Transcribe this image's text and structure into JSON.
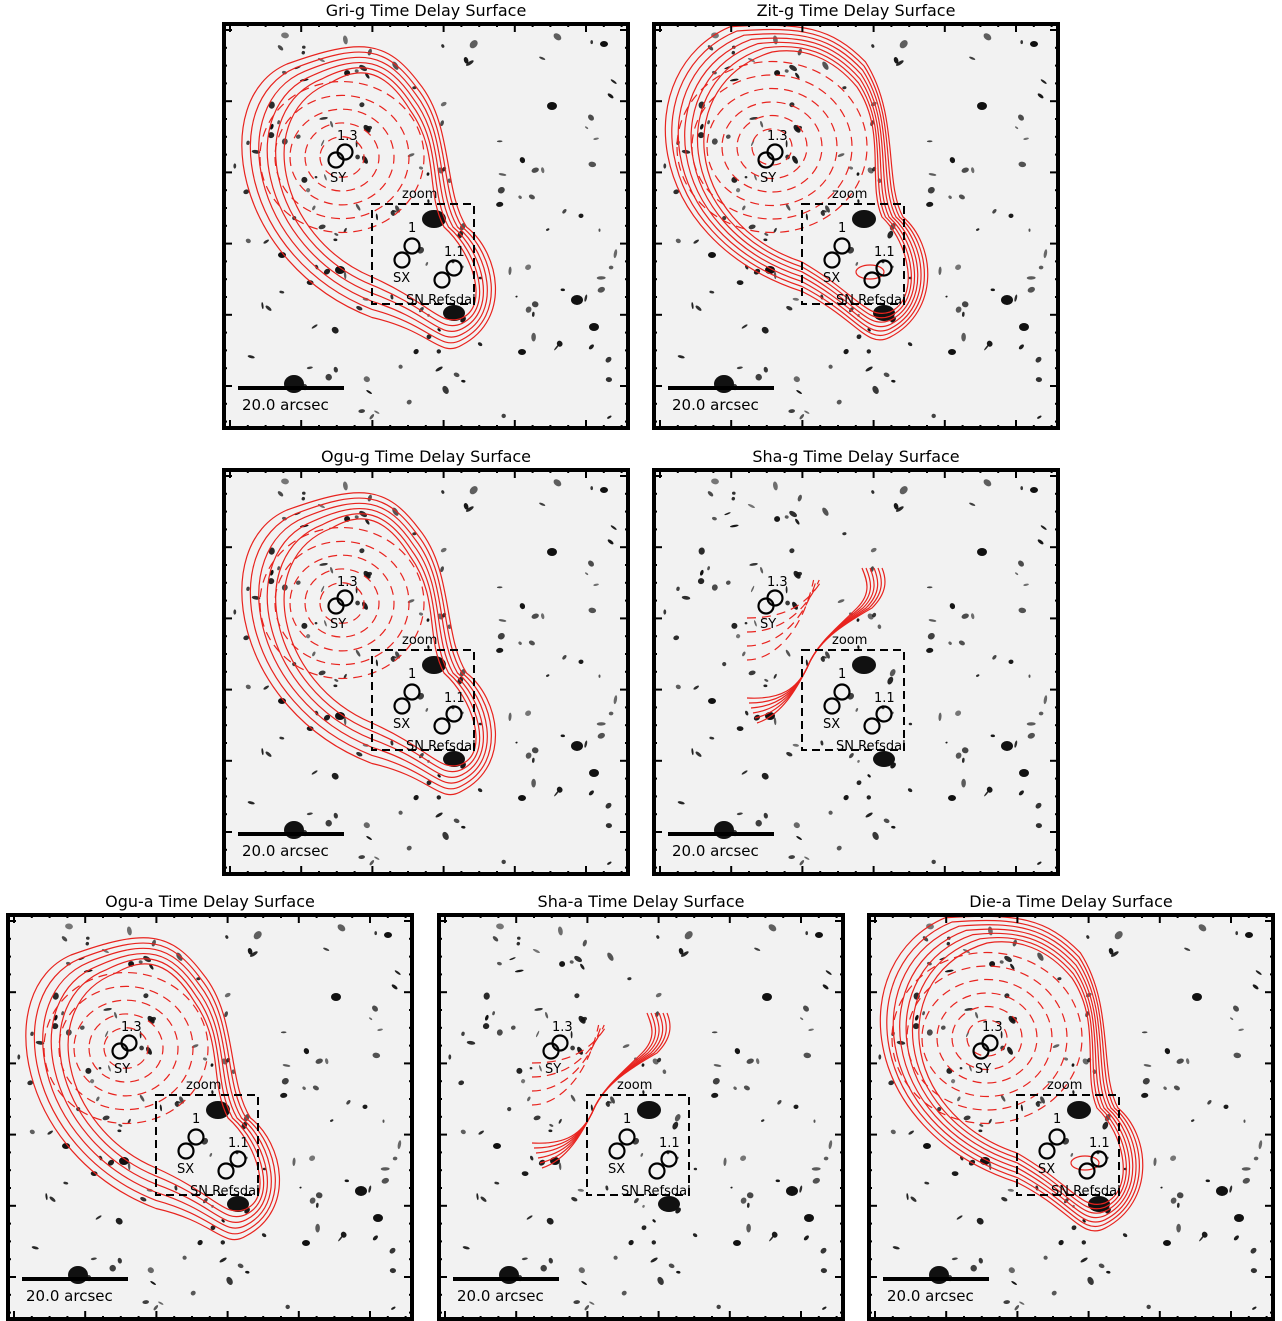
{
  "panels": [
    {
      "id": "gri-g",
      "title": "Gri-g Time Delay Surface",
      "contours": "full",
      "extra_loop": false
    },
    {
      "id": "zit-g",
      "title": "Zit-g Time Delay Surface",
      "contours": "large",
      "extra_loop": true
    },
    {
      "id": "ogu-g",
      "title": "Ogu-g Time Delay Surface",
      "contours": "full",
      "extra_loop": false
    },
    {
      "id": "sha-g",
      "title": "Sha-g Time Delay Surface",
      "contours": "partial",
      "extra_loop": false
    },
    {
      "id": "ogu-a",
      "title": "Ogu-a Time Delay Surface",
      "contours": "full",
      "extra_loop": false
    },
    {
      "id": "sha-a",
      "title": "Sha-a Time Delay Surface",
      "contours": "partial",
      "extra_loop": false
    },
    {
      "id": "die-a",
      "title": "Die-a Time Delay Surface",
      "contours": "large",
      "extra_loop": true
    }
  ],
  "labels": {
    "image_1_3": "1.3",
    "sy": "SY",
    "zoom": "zoom",
    "image_1": "1",
    "image_1_1": "1.1",
    "sx": "SX",
    "sn": "SN Refsdal",
    "scalebar": "20.0 arcsec"
  },
  "colors": {
    "contour": "#e8231e",
    "frame": "#000000",
    "galaxy": "#111111",
    "background": "#f2f2f2"
  }
}
